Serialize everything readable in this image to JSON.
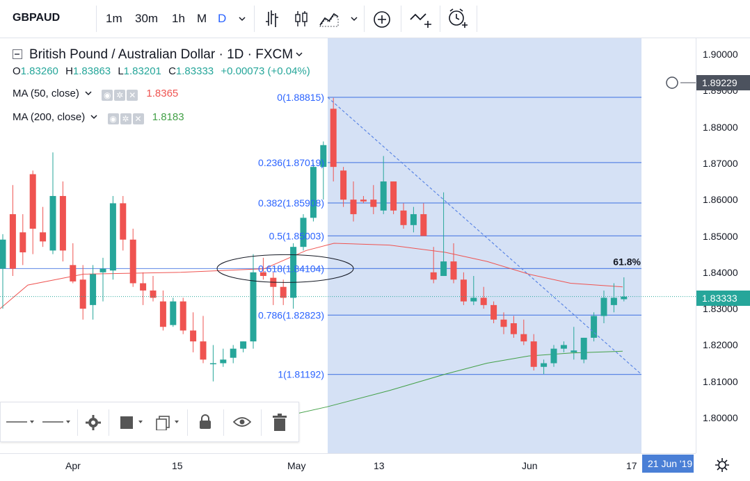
{
  "toolbar": {
    "symbol": "GBPAUD",
    "intervals": [
      "1m",
      "30m",
      "1h",
      "M",
      "D"
    ],
    "active_interval": "D",
    "icons": [
      "chevron-down-icon",
      "bar-chart-icon",
      "candlestick-icon",
      "area-chart-icon",
      "chevron-down-icon",
      "plus-circle-icon",
      "indicators-icon",
      "alarm-clock-icon"
    ]
  },
  "legend": {
    "title": "British Pound / Australian Dollar · 1D · FXCM",
    "ohlc": [
      {
        "k": "O",
        "v": "1.83260"
      },
      {
        "k": "H",
        "v": "1.83863"
      },
      {
        "k": "L",
        "v": "1.83201"
      },
      {
        "k": "C",
        "v": "1.83333"
      },
      {
        "k": "",
        "v": "+0.00073 (+0.04%)"
      }
    ],
    "ma50": {
      "label": "MA (50, close)",
      "value": "1.8365",
      "color": "#ef5350"
    },
    "ma200": {
      "label": "MA (200, close)",
      "value": "1.8183",
      "color": "#43a047"
    }
  },
  "price_axis": {
    "ticks": [
      "1.90000",
      "1.89000",
      "1.88000",
      "1.87000",
      "1.86000",
      "1.85000",
      "1.84000",
      "1.83000",
      "1.82000",
      "1.81000",
      "1.80000"
    ],
    "crosshair_price": "1.89229",
    "last_price": "1.83333"
  },
  "time_axis": {
    "ticks": [
      "Apr",
      "15",
      "May",
      "13",
      "Jun",
      "17"
    ],
    "highlight_date": "21 Jun '19"
  },
  "fib": {
    "levels": [
      {
        "label": "0(1.88815)",
        "price": 1.88815
      },
      {
        "label": "0.236(1.87019)",
        "price": 1.87019
      },
      {
        "label": "0.382(1.85908)",
        "price": 1.85908
      },
      {
        "label": "0.5(1.85003)",
        "price": 1.85003
      },
      {
        "label": "0.618(1.84104)",
        "price": 1.84104
      },
      {
        "label": "0.786(1.82823)",
        "price": 1.82823
      },
      {
        "label": "1(1.81192)",
        "price": 1.81192
      }
    ],
    "pct_label": "61.8%"
  },
  "chart_data": {
    "type": "candlestick",
    "title": "British Pound / Australian Dollar · 1D · FXCM",
    "ylim": [
      1.795,
      1.905
    ],
    "colors": {
      "up": "#26a69a",
      "down": "#ef5350",
      "fib": "#2962ff",
      "ma50": "#ef5350",
      "ma200": "#43a047"
    },
    "candles": [
      {
        "o": 1.841,
        "h": 1.8505,
        "l": 1.83,
        "c": 1.849
      },
      {
        "o": 1.856,
        "h": 1.864,
        "l": 1.839,
        "c": 1.841
      },
      {
        "o": 1.851,
        "h": 1.856,
        "l": 1.842,
        "c": 1.8455
      },
      {
        "o": 1.867,
        "h": 1.868,
        "l": 1.845,
        "c": 1.852
      },
      {
        "o": 1.851,
        "h": 1.858,
        "l": 1.847,
        "c": 1.8485
      },
      {
        "o": 1.846,
        "h": 1.873,
        "l": 1.845,
        "c": 1.861
      },
      {
        "o": 1.861,
        "h": 1.865,
        "l": 1.843,
        "c": 1.846
      },
      {
        "o": 1.842,
        "h": 1.848,
        "l": 1.837,
        "c": 1.8375
      },
      {
        "o": 1.838,
        "h": 1.842,
        "l": 1.827,
        "c": 1.83
      },
      {
        "o": 1.831,
        "h": 1.842,
        "l": 1.827,
        "c": 1.8395
      },
      {
        "o": 1.84,
        "h": 1.844,
        "l": 1.832,
        "c": 1.841
      },
      {
        "o": 1.8405,
        "h": 1.861,
        "l": 1.838,
        "c": 1.859
      },
      {
        "o": 1.859,
        "h": 1.861,
        "l": 1.846,
        "c": 1.849
      },
      {
        "o": 1.849,
        "h": 1.852,
        "l": 1.836,
        "c": 1.837
      },
      {
        "o": 1.837,
        "h": 1.84,
        "l": 1.831,
        "c": 1.835
      },
      {
        "o": 1.835,
        "h": 1.839,
        "l": 1.832,
        "c": 1.833
      },
      {
        "o": 1.832,
        "h": 1.835,
        "l": 1.824,
        "c": 1.825
      },
      {
        "o": 1.8255,
        "h": 1.833,
        "l": 1.825,
        "c": 1.832
      },
      {
        "o": 1.832,
        "h": 1.833,
        "l": 1.823,
        "c": 1.824
      },
      {
        "o": 1.824,
        "h": 1.829,
        "l": 1.818,
        "c": 1.821
      },
      {
        "o": 1.821,
        "h": 1.828,
        "l": 1.815,
        "c": 1.816
      },
      {
        "o": 1.815,
        "h": 1.82,
        "l": 1.81,
        "c": 1.815
      },
      {
        "o": 1.815,
        "h": 1.819,
        "l": 1.814,
        "c": 1.816
      },
      {
        "o": 1.8165,
        "h": 1.82,
        "l": 1.815,
        "c": 1.819
      },
      {
        "o": 1.819,
        "h": 1.821,
        "l": 1.818,
        "c": 1.821
      },
      {
        "o": 1.821,
        "h": 1.845,
        "l": 1.819,
        "c": 1.84
      },
      {
        "o": 1.84,
        "h": 1.844,
        "l": 1.838,
        "c": 1.839
      },
      {
        "o": 1.8385,
        "h": 1.84,
        "l": 1.831,
        "c": 1.836
      },
      {
        "o": 1.836,
        "h": 1.838,
        "l": 1.831,
        "c": 1.833
      },
      {
        "o": 1.833,
        "h": 1.848,
        "l": 1.83,
        "c": 1.847
      },
      {
        "o": 1.847,
        "h": 1.856,
        "l": 1.846,
        "c": 1.855
      },
      {
        "o": 1.855,
        "h": 1.87,
        "l": 1.854,
        "c": 1.869
      },
      {
        "o": 1.869,
        "h": 1.876,
        "l": 1.86,
        "c": 1.875
      },
      {
        "o": 1.885,
        "h": 1.888,
        "l": 1.865,
        "c": 1.869
      },
      {
        "o": 1.868,
        "h": 1.869,
        "l": 1.858,
        "c": 1.86
      },
      {
        "o": 1.86,
        "h": 1.865,
        "l": 1.854,
        "c": 1.856
      },
      {
        "o": 1.86,
        "h": 1.861,
        "l": 1.859,
        "c": 1.8595
      },
      {
        "o": 1.86,
        "h": 1.864,
        "l": 1.856,
        "c": 1.858
      },
      {
        "o": 1.857,
        "h": 1.872,
        "l": 1.856,
        "c": 1.865
      },
      {
        "o": 1.865,
        "h": 1.865,
        "l": 1.856,
        "c": 1.857
      },
      {
        "o": 1.857,
        "h": 1.859,
        "l": 1.852,
        "c": 1.853
      },
      {
        "o": 1.853,
        "h": 1.858,
        "l": 1.851,
        "c": 1.856
      },
      {
        "o": 1.856,
        "h": 1.859,
        "l": 1.85,
        "c": 1.85
      },
      {
        "o": 1.84,
        "h": 1.847,
        "l": 1.837,
        "c": 1.838
      },
      {
        "o": 1.839,
        "h": 1.862,
        "l": 1.839,
        "c": 1.843
      },
      {
        "o": 1.843,
        "h": 1.848,
        "l": 1.837,
        "c": 1.838
      },
      {
        "o": 1.838,
        "h": 1.84,
        "l": 1.831,
        "c": 1.832
      },
      {
        "o": 1.832,
        "h": 1.839,
        "l": 1.831,
        "c": 1.833
      },
      {
        "o": 1.833,
        "h": 1.836,
        "l": 1.83,
        "c": 1.831
      },
      {
        "o": 1.831,
        "h": 1.832,
        "l": 1.826,
        "c": 1.827
      },
      {
        "o": 1.827,
        "h": 1.829,
        "l": 1.823,
        "c": 1.825
      },
      {
        "o": 1.826,
        "h": 1.828,
        "l": 1.822,
        "c": 1.823
      },
      {
        "o": 1.823,
        "h": 1.827,
        "l": 1.82,
        "c": 1.821
      },
      {
        "o": 1.821,
        "h": 1.823,
        "l": 1.813,
        "c": 1.814
      },
      {
        "o": 1.814,
        "h": 1.816,
        "l": 1.812,
        "c": 1.815
      },
      {
        "o": 1.815,
        "h": 1.82,
        "l": 1.814,
        "c": 1.819
      },
      {
        "o": 1.819,
        "h": 1.821,
        "l": 1.818,
        "c": 1.82
      },
      {
        "o": 1.818,
        "h": 1.825,
        "l": 1.816,
        "c": 1.8185
      },
      {
        "o": 1.816,
        "h": 1.822,
        "l": 1.815,
        "c": 1.822
      },
      {
        "o": 1.822,
        "h": 1.829,
        "l": 1.821,
        "c": 1.828
      },
      {
        "o": 1.828,
        "h": 1.835,
        "l": 1.826,
        "c": 1.833
      },
      {
        "o": 1.831,
        "h": 1.837,
        "l": 1.829,
        "c": 1.833
      },
      {
        "o": 1.8326,
        "h": 1.83863,
        "l": 1.83201,
        "c": 1.83333
      }
    ]
  }
}
